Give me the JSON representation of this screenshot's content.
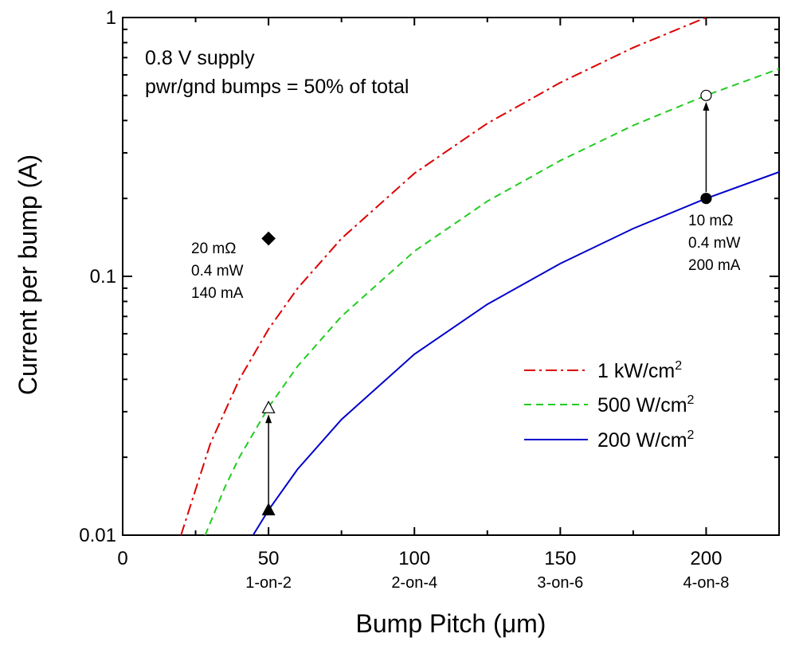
{
  "chart_data": {
    "type": "line",
    "xlabel": "Bump Pitch (μm)",
    "ylabel": "Current per bump (A)",
    "xlim": [
      0,
      225
    ],
    "ylim": [
      0.01,
      1
    ],
    "yscale": "log",
    "x_ticks": [
      {
        "value": 0,
        "label": "0",
        "sublabel": ""
      },
      {
        "value": 50,
        "label": "50",
        "sublabel": "1-on-2"
      },
      {
        "value": 100,
        "label": "100",
        "sublabel": "2-on-4"
      },
      {
        "value": 150,
        "label": "150",
        "sublabel": "3-on-6"
      },
      {
        "value": 200,
        "label": "200",
        "sublabel": "4-on-8"
      }
    ],
    "y_ticks": [
      {
        "value": 0.01,
        "label": "0.01"
      },
      {
        "value": 0.1,
        "label": "0.1"
      },
      {
        "value": 1,
        "label": "1"
      }
    ],
    "annotation_lines": [
      "0.8 V supply",
      "pwr/gnd bumps = 50% of total"
    ],
    "series": [
      {
        "name": "1 kW/cm",
        "sup": "2",
        "color": "#dd0000",
        "dash": "14,5,3,5",
        "x": [
          20,
          30,
          40,
          50,
          60,
          75,
          100,
          125,
          150,
          175,
          200
        ],
        "y": [
          0.01,
          0.0225,
          0.04,
          0.0625,
          0.09,
          0.14,
          0.25,
          0.39,
          0.56,
          0.765,
          1.0
        ]
      },
      {
        "name": "500 W/cm",
        "sup": "2",
        "color": "#22cc22",
        "dash": "9,6",
        "x": [
          28.3,
          35,
          40,
          50,
          60,
          75,
          100,
          125,
          150,
          175,
          200,
          225
        ],
        "y": [
          0.01,
          0.0153,
          0.02,
          0.0312,
          0.045,
          0.07,
          0.125,
          0.195,
          0.28,
          0.383,
          0.5,
          0.633
        ]
      },
      {
        "name": "200 W/cm",
        "sup": "2",
        "color": "#0000cc",
        "dash": "",
        "x": [
          44.7,
          50,
          60,
          75,
          100,
          125,
          150,
          175,
          200,
          225
        ],
        "y": [
          0.01,
          0.0125,
          0.018,
          0.028,
          0.05,
          0.078,
          0.112,
          0.153,
          0.2,
          0.253
        ]
      }
    ],
    "markers": [
      {
        "shape": "diamond",
        "filled": true,
        "x": 50,
        "y": 0.14
      },
      {
        "shape": "triangle",
        "filled": true,
        "x": 50,
        "y": 0.0125
      },
      {
        "shape": "triangle",
        "filled": false,
        "x": 50,
        "y": 0.031
      },
      {
        "shape": "circle",
        "filled": true,
        "x": 200,
        "y": 0.2
      },
      {
        "shape": "circle",
        "filled": false,
        "x": 200,
        "y": 0.5
      }
    ],
    "arrows": [
      {
        "from": [
          50,
          0.0125
        ],
        "to": [
          50,
          0.031
        ]
      },
      {
        "from": [
          200,
          0.2
        ],
        "to": [
          200,
          0.5
        ]
      }
    ],
    "point_notes": [
      {
        "lines": [
          "20 mΩ",
          "0.4 mW",
          "140 mA"
        ]
      },
      {
        "lines": [
          "10 mΩ",
          "0.4 mW",
          "200 mA"
        ]
      }
    ],
    "legend_position": "right-middle",
    "grid": false
  }
}
